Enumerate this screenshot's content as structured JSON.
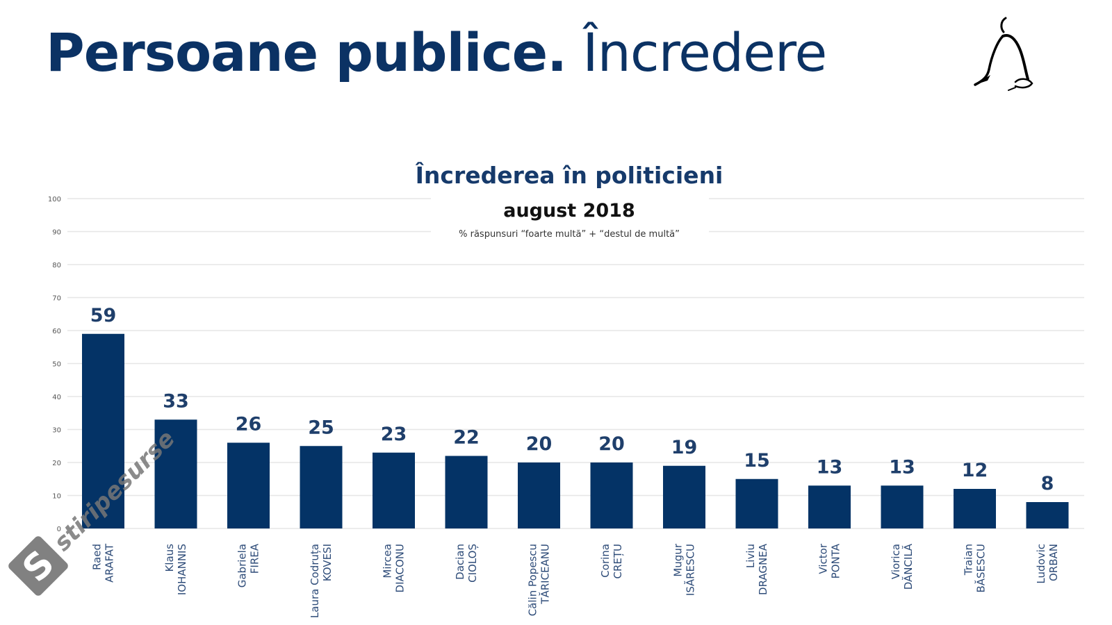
{
  "slide": {
    "title_bold": "Persoane publice.",
    "title_light": "Încredere"
  },
  "logo": {
    "icon": "seated-figure-logo-icon"
  },
  "watermark": {
    "text": "stiripesurse.ro",
    "icon": "s-logo-icon"
  },
  "chart_data": {
    "type": "bar",
    "title": "Încrederea în politicieni",
    "subtitle": "august 2018",
    "note": "% răspunsuri “foarte multă” + “destul de multă”",
    "xlabel": "",
    "ylabel": "",
    "ylim": [
      0,
      100
    ],
    "yticks": [
      0,
      10,
      20,
      30,
      40,
      50,
      60,
      70,
      80,
      90,
      100
    ],
    "grid": true,
    "legend": "none",
    "bar_color": "#043366",
    "categories": [
      [
        "Raed",
        "ARAFAT"
      ],
      [
        "Klaus",
        "IOHANNIS"
      ],
      [
        "Gabriela",
        "FIREA"
      ],
      [
        "Laura Codruța",
        "KOVESI"
      ],
      [
        "Mircea",
        "DIACONU"
      ],
      [
        "Dacian",
        "CIOLOȘ"
      ],
      [
        "Călin Popescu",
        "TĂRICEANU"
      ],
      [
        "Corina",
        "CREȚU"
      ],
      [
        "Mugur",
        "ISĂRESCU"
      ],
      [
        "Liviu",
        "DRAGNEA"
      ],
      [
        "Victor",
        "PONTA"
      ],
      [
        "Viorica",
        "DĂNCILĂ"
      ],
      [
        "Traian",
        "BĂSESCU"
      ],
      [
        "Ludovic",
        "ORBAN"
      ]
    ],
    "values": [
      59,
      33,
      26,
      25,
      23,
      22,
      20,
      20,
      19,
      15,
      13,
      13,
      12,
      8
    ]
  }
}
